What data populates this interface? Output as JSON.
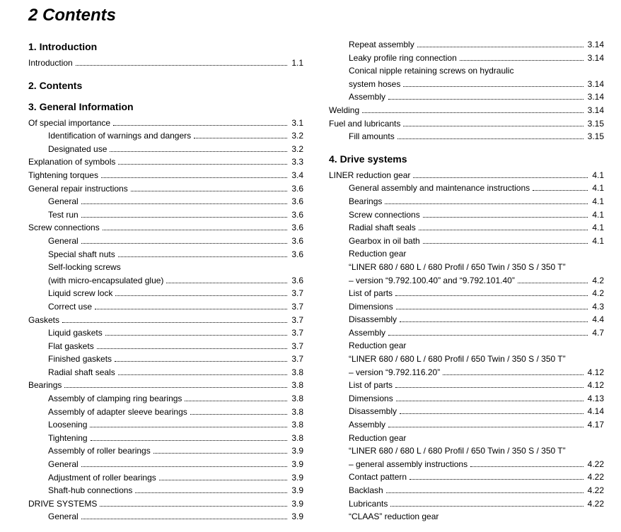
{
  "title": "2 Contents",
  "left": {
    "sections": [
      {
        "heading": "1. Introduction",
        "lines": [
          {
            "label": "Introduction",
            "page": "1.1",
            "indent": 0
          }
        ]
      },
      {
        "heading": "2. Contents",
        "lines": []
      },
      {
        "heading": "3. General Information",
        "lines": [
          {
            "label": "Of special importance",
            "page": "3.1",
            "indent": 0
          },
          {
            "label": "Identification of warnings and dangers",
            "page": "3.2",
            "indent": 1
          },
          {
            "label": "Designated use",
            "page": "3.2",
            "indent": 1
          },
          {
            "label": "Explanation of symbols",
            "page": "3.3",
            "indent": 0
          },
          {
            "label": "Tightening torques",
            "page": "3.4",
            "indent": 0
          },
          {
            "label": "General repair instructions",
            "page": "3.6",
            "indent": 0
          },
          {
            "label": "General",
            "page": "3.6",
            "indent": 1
          },
          {
            "label": "Test run",
            "page": "3.6",
            "indent": 1
          },
          {
            "label": "Screw connections",
            "page": "3.6",
            "indent": 0
          },
          {
            "label": "General",
            "page": "3.6",
            "indent": 1
          },
          {
            "label": "Special shaft nuts",
            "page": "3.6",
            "indent": 1
          },
          {
            "label": "Self-locking screws",
            "indent": 1,
            "nopage": true
          },
          {
            "label": "(with micro-encapsulated glue)",
            "page": "3.6",
            "indent": 1
          },
          {
            "label": "Liquid screw lock",
            "page": "3.7",
            "indent": 1
          },
          {
            "label": "Correct use",
            "page": "3.7",
            "indent": 1
          },
          {
            "label": "Gaskets",
            "page": "3.7",
            "indent": 0
          },
          {
            "label": "Liquid gaskets",
            "page": "3.7",
            "indent": 1
          },
          {
            "label": "Flat gaskets",
            "page": "3.7",
            "indent": 1
          },
          {
            "label": "Finished gaskets",
            "page": "3.7",
            "indent": 1
          },
          {
            "label": "Radial shaft seals",
            "page": "3.8",
            "indent": 1
          },
          {
            "label": "Bearings",
            "page": "3.8",
            "indent": 0
          },
          {
            "label": "Assembly of clamping ring bearings",
            "page": "3.8",
            "indent": 1
          },
          {
            "label": "Assembly of adapter sleeve bearings",
            "page": "3.8",
            "indent": 1
          },
          {
            "label": "Loosening",
            "page": "3.8",
            "indent": 1
          },
          {
            "label": "Tightening",
            "page": "3.8",
            "indent": 1
          },
          {
            "label": "Assembly of roller bearings",
            "page": "3.9",
            "indent": 1
          },
          {
            "label": "General",
            "page": "3.9",
            "indent": 1
          },
          {
            "label": "Adjustment of roller bearings",
            "page": "3.9",
            "indent": 1
          },
          {
            "label": "Shaft-hub connections",
            "page": "3.9",
            "indent": 1
          },
          {
            "label": "DRIVE SYSTEMS",
            "page": "3.9",
            "indent": 0
          },
          {
            "label": "General",
            "page": "3.9",
            "indent": 1
          }
        ]
      }
    ]
  },
  "right": {
    "continuation": [
      {
        "label": "Repeat assembly",
        "page": "3.14",
        "indent": 1
      },
      {
        "label": "Leaky profile ring connection",
        "page": "3.14",
        "indent": 1
      },
      {
        "label": "Conical nipple retaining screws on hydraulic",
        "indent": 1,
        "nopage": true
      },
      {
        "label": "system hoses",
        "page": "3.14",
        "indent": 1
      },
      {
        "label": "Assembly",
        "page": "3.14",
        "indent": 1
      },
      {
        "label": "Welding",
        "page": "3.14",
        "indent": 0
      },
      {
        "label": "Fuel and lubricants",
        "page": "3.15",
        "indent": 0
      },
      {
        "label": "Fill amounts",
        "page": "3.15",
        "indent": 1
      }
    ],
    "sections": [
      {
        "heading": "4. Drive systems",
        "lines": [
          {
            "label": "LINER reduction gear",
            "page": "4.1",
            "indent": 0
          },
          {
            "label": "General assembly and maintenance instructions",
            "page": "4.1",
            "indent": 1
          },
          {
            "label": "Bearings",
            "page": "4.1",
            "indent": 1
          },
          {
            "label": "Screw connections",
            "page": "4.1",
            "indent": 1
          },
          {
            "label": "Radial shaft seals",
            "page": "4.1",
            "indent": 1
          },
          {
            "label": "Gearbox in oil bath",
            "page": "4.1",
            "indent": 1
          },
          {
            "label": "Reduction gear",
            "indent": 1,
            "nopage": true
          },
          {
            "label": "“LINER 680 / 680 L / 680 Profil / 650 Twin / 350 S / 350 T”",
            "indent": 1,
            "nopage": true
          },
          {
            "label": "– version “9.792.100.40” and “9.792.101.40”",
            "page": "4.2",
            "indent": 1
          },
          {
            "label": "List of parts",
            "page": "4.2",
            "indent": 1
          },
          {
            "label": "Dimensions",
            "page": "4.3",
            "indent": 1
          },
          {
            "label": "Disassembly",
            "page": "4.4",
            "indent": 1
          },
          {
            "label": "Assembly",
            "page": "4.7",
            "indent": 1
          },
          {
            "label": "Reduction gear",
            "indent": 1,
            "nopage": true
          },
          {
            "label": "“LINER 680 / 680 L / 680 Profil / 650 Twin / 350 S / 350 T”",
            "indent": 1,
            "nopage": true
          },
          {
            "label": "– version “9.792.116.20”",
            "page": "4.12",
            "indent": 1
          },
          {
            "label": "List of parts",
            "page": "4.12",
            "indent": 1
          },
          {
            "label": "Dimensions",
            "page": "4.13",
            "indent": 1
          },
          {
            "label": "Disassembly",
            "page": "4.14",
            "indent": 1
          },
          {
            "label": "Assembly",
            "page": "4.17",
            "indent": 1
          },
          {
            "label": "Reduction gear",
            "indent": 1,
            "nopage": true
          },
          {
            "label": "“LINER 680 / 680 L / 680 Profil / 650 Twin / 350 S / 350 T”",
            "indent": 1,
            "nopage": true
          },
          {
            "label": "– general assembly instructions",
            "page": "4.22",
            "indent": 1
          },
          {
            "label": "Contact pattern",
            "page": "4.22",
            "indent": 1
          },
          {
            "label": "Backlash",
            "page": "4.22",
            "indent": 1
          },
          {
            "label": "Lubricants",
            "page": "4.22",
            "indent": 1
          },
          {
            "label": "“CLAAS” reduction gear",
            "indent": 1,
            "nopage": true
          }
        ]
      }
    ]
  }
}
